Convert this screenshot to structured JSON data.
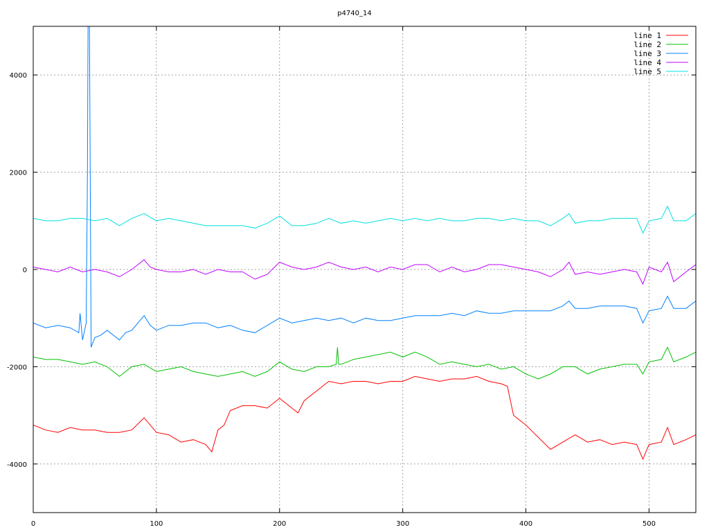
{
  "chart_data": {
    "type": "line",
    "title": "p4740_14",
    "xlabel": "",
    "ylabel": "",
    "xlim": [
      0,
      538
    ],
    "ylim": [
      -5000,
      5000
    ],
    "xticks": [
      0,
      100,
      200,
      300,
      400,
      500
    ],
    "yticks": [
      -4000,
      -2000,
      0,
      2000,
      4000
    ],
    "grid": true,
    "legend_position": "top-right",
    "series": [
      {
        "name": "line 1",
        "color": "#ff0000",
        "points": [
          [
            0,
            -3200
          ],
          [
            10,
            -3300
          ],
          [
            20,
            -3350
          ],
          [
            30,
            -3250
          ],
          [
            40,
            -3300
          ],
          [
            50,
            -3300
          ],
          [
            60,
            -3350
          ],
          [
            70,
            -3350
          ],
          [
            80,
            -3300
          ],
          [
            90,
            -3050
          ],
          [
            100,
            -3350
          ],
          [
            110,
            -3400
          ],
          [
            120,
            -3550
          ],
          [
            130,
            -3500
          ],
          [
            140,
            -3600
          ],
          [
            145,
            -3750
          ],
          [
            150,
            -3300
          ],
          [
            155,
            -3200
          ],
          [
            160,
            -2900
          ],
          [
            170,
            -2800
          ],
          [
            180,
            -2800
          ],
          [
            190,
            -2850
          ],
          [
            200,
            -2650
          ],
          [
            210,
            -2850
          ],
          [
            215,
            -2950
          ],
          [
            220,
            -2700
          ],
          [
            230,
            -2500
          ],
          [
            240,
            -2300
          ],
          [
            250,
            -2350
          ],
          [
            260,
            -2300
          ],
          [
            270,
            -2300
          ],
          [
            280,
            -2350
          ],
          [
            290,
            -2300
          ],
          [
            300,
            -2300
          ],
          [
            310,
            -2200
          ],
          [
            320,
            -2250
          ],
          [
            330,
            -2300
          ],
          [
            340,
            -2250
          ],
          [
            350,
            -2250
          ],
          [
            360,
            -2200
          ],
          [
            370,
            -2300
          ],
          [
            380,
            -2350
          ],
          [
            385,
            -2400
          ],
          [
            390,
            -3000
          ],
          [
            400,
            -3200
          ],
          [
            410,
            -3450
          ],
          [
            420,
            -3700
          ],
          [
            430,
            -3550
          ],
          [
            440,
            -3400
          ],
          [
            450,
            -3550
          ],
          [
            460,
            -3500
          ],
          [
            470,
            -3600
          ],
          [
            480,
            -3550
          ],
          [
            490,
            -3600
          ],
          [
            495,
            -3900
          ],
          [
            500,
            -3600
          ],
          [
            510,
            -3550
          ],
          [
            515,
            -3250
          ],
          [
            520,
            -3600
          ],
          [
            530,
            -3500
          ],
          [
            538,
            -3400
          ]
        ]
      },
      {
        "name": "line 2",
        "color": "#00c000",
        "points": [
          [
            0,
            -1800
          ],
          [
            10,
            -1850
          ],
          [
            20,
            -1850
          ],
          [
            30,
            -1900
          ],
          [
            40,
            -1950
          ],
          [
            50,
            -1900
          ],
          [
            60,
            -2000
          ],
          [
            70,
            -2200
          ],
          [
            80,
            -2000
          ],
          [
            90,
            -1950
          ],
          [
            100,
            -2100
          ],
          [
            110,
            -2050
          ],
          [
            120,
            -2000
          ],
          [
            130,
            -2100
          ],
          [
            140,
            -2150
          ],
          [
            150,
            -2200
          ],
          [
            160,
            -2150
          ],
          [
            170,
            -2100
          ],
          [
            180,
            -2200
          ],
          [
            190,
            -2100
          ],
          [
            200,
            -1900
          ],
          [
            210,
            -2050
          ],
          [
            220,
            -2100
          ],
          [
            230,
            -2000
          ],
          [
            240,
            -2000
          ],
          [
            246,
            -1950
          ],
          [
            247,
            -1600
          ],
          [
            248,
            -1950
          ],
          [
            250,
            -1950
          ],
          [
            260,
            -1850
          ],
          [
            270,
            -1800
          ],
          [
            280,
            -1750
          ],
          [
            290,
            -1700
          ],
          [
            300,
            -1800
          ],
          [
            310,
            -1700
          ],
          [
            320,
            -1800
          ],
          [
            330,
            -1950
          ],
          [
            340,
            -1900
          ],
          [
            350,
            -1950
          ],
          [
            360,
            -2000
          ],
          [
            370,
            -1950
          ],
          [
            380,
            -2050
          ],
          [
            390,
            -2000
          ],
          [
            400,
            -2150
          ],
          [
            410,
            -2250
          ],
          [
            420,
            -2150
          ],
          [
            430,
            -2000
          ],
          [
            440,
            -2000
          ],
          [
            450,
            -2150
          ],
          [
            460,
            -2050
          ],
          [
            470,
            -2000
          ],
          [
            480,
            -1950
          ],
          [
            490,
            -1950
          ],
          [
            495,
            -2150
          ],
          [
            500,
            -1900
          ],
          [
            510,
            -1850
          ],
          [
            515,
            -1600
          ],
          [
            520,
            -1900
          ],
          [
            530,
            -1800
          ],
          [
            538,
            -1700
          ]
        ]
      },
      {
        "name": "line 3",
        "color": "#0080ff",
        "points": [
          [
            0,
            -1100
          ],
          [
            10,
            -1200
          ],
          [
            20,
            -1150
          ],
          [
            30,
            -1200
          ],
          [
            37,
            -1300
          ],
          [
            38,
            -900
          ],
          [
            40,
            -1450
          ],
          [
            43,
            -1100
          ],
          [
            44,
            2000
          ],
          [
            45,
            8000
          ],
          [
            46,
            3400
          ],
          [
            47,
            -1600
          ],
          [
            50,
            -1400
          ],
          [
            55,
            -1350
          ],
          [
            60,
            -1250
          ],
          [
            70,
            -1450
          ],
          [
            75,
            -1300
          ],
          [
            80,
            -1250
          ],
          [
            85,
            -1100
          ],
          [
            90,
            -950
          ],
          [
            95,
            -1150
          ],
          [
            100,
            -1250
          ],
          [
            110,
            -1150
          ],
          [
            120,
            -1150
          ],
          [
            130,
            -1100
          ],
          [
            140,
            -1100
          ],
          [
            150,
            -1200
          ],
          [
            160,
            -1150
          ],
          [
            170,
            -1250
          ],
          [
            180,
            -1300
          ],
          [
            190,
            -1150
          ],
          [
            200,
            -1000
          ],
          [
            210,
            -1100
          ],
          [
            220,
            -1050
          ],
          [
            230,
            -1000
          ],
          [
            240,
            -1050
          ],
          [
            250,
            -1000
          ],
          [
            260,
            -1100
          ],
          [
            270,
            -1000
          ],
          [
            280,
            -1050
          ],
          [
            290,
            -1050
          ],
          [
            300,
            -1000
          ],
          [
            310,
            -950
          ],
          [
            320,
            -950
          ],
          [
            330,
            -950
          ],
          [
            340,
            -900
          ],
          [
            350,
            -950
          ],
          [
            360,
            -850
          ],
          [
            370,
            -900
          ],
          [
            380,
            -900
          ],
          [
            390,
            -850
          ],
          [
            400,
            -850
          ],
          [
            410,
            -850
          ],
          [
            420,
            -850
          ],
          [
            430,
            -750
          ],
          [
            435,
            -650
          ],
          [
            440,
            -800
          ],
          [
            450,
            -800
          ],
          [
            460,
            -750
          ],
          [
            470,
            -750
          ],
          [
            480,
            -750
          ],
          [
            490,
            -800
          ],
          [
            495,
            -1100
          ],
          [
            500,
            -850
          ],
          [
            510,
            -800
          ],
          [
            515,
            -550
          ],
          [
            520,
            -800
          ],
          [
            530,
            -800
          ],
          [
            538,
            -650
          ]
        ]
      },
      {
        "name": "line 4",
        "color": "#c000ff",
        "points": [
          [
            0,
            50
          ],
          [
            10,
            0
          ],
          [
            20,
            -50
          ],
          [
            30,
            50
          ],
          [
            40,
            -50
          ],
          [
            50,
            0
          ],
          [
            60,
            -50
          ],
          [
            70,
            -150
          ],
          [
            80,
            0
          ],
          [
            90,
            200
          ],
          [
            95,
            50
          ],
          [
            100,
            0
          ],
          [
            110,
            -50
          ],
          [
            120,
            -50
          ],
          [
            130,
            0
          ],
          [
            140,
            -100
          ],
          [
            150,
            0
          ],
          [
            160,
            -50
          ],
          [
            170,
            -50
          ],
          [
            180,
            -200
          ],
          [
            190,
            -100
          ],
          [
            200,
            150
          ],
          [
            210,
            50
          ],
          [
            220,
            0
          ],
          [
            230,
            50
          ],
          [
            240,
            150
          ],
          [
            250,
            50
          ],
          [
            260,
            0
          ],
          [
            270,
            50
          ],
          [
            280,
            -50
          ],
          [
            290,
            50
          ],
          [
            300,
            0
          ],
          [
            310,
            100
          ],
          [
            320,
            100
          ],
          [
            330,
            -50
          ],
          [
            340,
            50
          ],
          [
            350,
            -50
          ],
          [
            360,
            0
          ],
          [
            370,
            100
          ],
          [
            380,
            100
          ],
          [
            390,
            50
          ],
          [
            400,
            0
          ],
          [
            410,
            -50
          ],
          [
            420,
            -150
          ],
          [
            430,
            0
          ],
          [
            435,
            150
          ],
          [
            440,
            -100
          ],
          [
            450,
            -50
          ],
          [
            460,
            -100
          ],
          [
            470,
            -50
          ],
          [
            480,
            0
          ],
          [
            490,
            -50
          ],
          [
            495,
            -300
          ],
          [
            500,
            50
          ],
          [
            510,
            -50
          ],
          [
            515,
            150
          ],
          [
            520,
            -250
          ],
          [
            530,
            -50
          ],
          [
            538,
            100
          ]
        ]
      },
      {
        "name": "line 5",
        "color": "#00e0e0",
        "points": [
          [
            0,
            1050
          ],
          [
            10,
            1000
          ],
          [
            20,
            1000
          ],
          [
            30,
            1050
          ],
          [
            40,
            1050
          ],
          [
            50,
            1000
          ],
          [
            60,
            1050
          ],
          [
            70,
            900
          ],
          [
            80,
            1050
          ],
          [
            90,
            1150
          ],
          [
            100,
            1000
          ],
          [
            110,
            1050
          ],
          [
            120,
            1000
          ],
          [
            130,
            950
          ],
          [
            140,
            900
          ],
          [
            150,
            900
          ],
          [
            160,
            900
          ],
          [
            170,
            900
          ],
          [
            180,
            850
          ],
          [
            190,
            950
          ],
          [
            200,
            1100
          ],
          [
            210,
            900
          ],
          [
            220,
            900
          ],
          [
            230,
            950
          ],
          [
            240,
            1050
          ],
          [
            250,
            950
          ],
          [
            260,
            1000
          ],
          [
            270,
            950
          ],
          [
            280,
            1000
          ],
          [
            290,
            1050
          ],
          [
            300,
            1000
          ],
          [
            310,
            1050
          ],
          [
            320,
            1000
          ],
          [
            330,
            1050
          ],
          [
            340,
            1000
          ],
          [
            350,
            1000
          ],
          [
            360,
            1050
          ],
          [
            370,
            1050
          ],
          [
            380,
            1000
          ],
          [
            390,
            1050
          ],
          [
            400,
            1000
          ],
          [
            410,
            1000
          ],
          [
            420,
            900
          ],
          [
            430,
            1050
          ],
          [
            435,
            1150
          ],
          [
            440,
            950
          ],
          [
            450,
            1000
          ],
          [
            460,
            1000
          ],
          [
            470,
            1050
          ],
          [
            480,
            1050
          ],
          [
            490,
            1050
          ],
          [
            495,
            750
          ],
          [
            500,
            1000
          ],
          [
            510,
            1050
          ],
          [
            515,
            1300
          ],
          [
            520,
            1000
          ],
          [
            530,
            1000
          ],
          [
            538,
            1150
          ]
        ]
      }
    ]
  }
}
